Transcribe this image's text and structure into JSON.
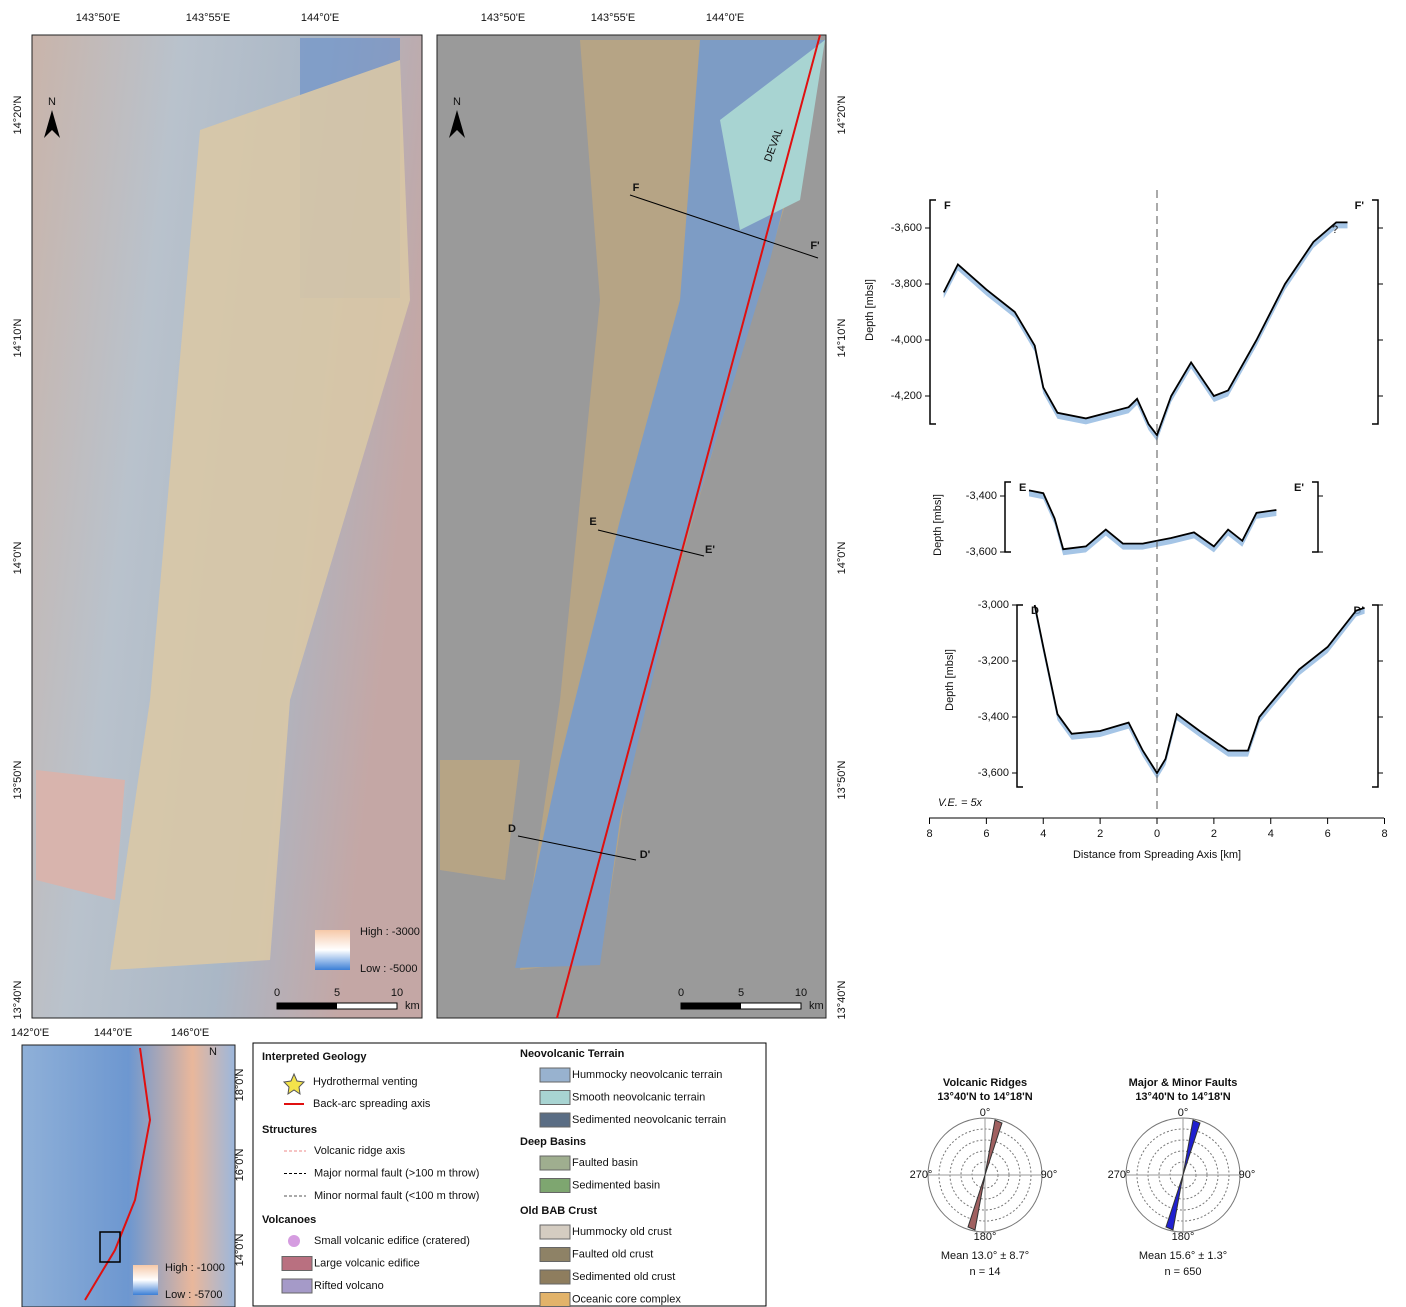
{
  "maps": [
    {
      "lon_labels": [
        "143°50'E",
        "143°55'E",
        "144°0'E"
      ],
      "lat_labels": [
        "14°20'N",
        "14°10'N",
        "14°0'N",
        "13°50'N",
        "13°40'N"
      ],
      "north": "N",
      "scale": [
        "0",
        "5",
        "10",
        "km"
      ],
      "colorbar": [
        "High : -3000",
        "Low : -5000"
      ]
    },
    {
      "lon_labels": [
        "143°50'E",
        "143°55'E",
        "144°0'E"
      ],
      "lat_labels": [
        "14°20'N",
        "14°10'N",
        "14°0'N",
        "13°50'N",
        "13°40'N"
      ],
      "north": "N",
      "scale": [
        "0",
        "5",
        "10",
        "km"
      ],
      "lines": [
        "F",
        "F'",
        "E",
        "E'",
        "D",
        "D'"
      ],
      "axis_label": "DEVAL"
    }
  ],
  "inset": {
    "lon_labels": [
      "142°0'E",
      "144°0'E",
      "146°0'E"
    ],
    "lat_labels": [
      "18°0'N",
      "16°0'N",
      "14°0'N"
    ],
    "north": "N",
    "colorbar": [
      "High : -1000",
      "Low : -5700"
    ]
  },
  "legend": {
    "title": "Interpreted Geology",
    "items": [
      "Hydrothermal venting",
      "Back-arc spreading axis"
    ],
    "sections": [
      {
        "heading": "Structures",
        "items": [
          "Volcanic ridge axis",
          "Major normal fault (>100 m throw)",
          "Minor normal fault (<100 m throw)"
        ]
      },
      {
        "heading": "Volcanoes",
        "items": [
          "Small volcanic edifice (cratered)",
          "Large volcanic edifice",
          "Rifted volcano"
        ]
      },
      {
        "heading": "Neovolcanic Terrain",
        "items": [
          "Hummocky neovolcanic terrain",
          "Smooth neovolcanic terrain",
          "Sedimented neovolcanic terrain"
        ]
      },
      {
        "heading": "Deep Basins",
        "items": [
          "Faulted basin",
          "Sedimented basin"
        ]
      },
      {
        "heading": "Old BAB Crust",
        "items": [
          "Hummocky old crust",
          "Faulted old crust",
          "Sedimented old crust",
          "Oceanic core complex"
        ]
      }
    ]
  },
  "profiles": {
    "y_title": "Depth [mbsl]",
    "x_title": "Distance from Spreading Axis [km]",
    "note": "V.E. = 5x",
    "xlim": [
      -8,
      8
    ],
    "xticks": [
      {
        "value": -8,
        "label": "8"
      },
      {
        "value": -6,
        "label": "6"
      },
      {
        "value": -4,
        "label": "4"
      },
      {
        "value": -2,
        "label": "2"
      },
      0,
      2,
      4,
      6,
      8
    ],
    "panels": [
      {
        "start": "F",
        "end": "F'",
        "annotation": "?",
        "ylim": [
          -4300,
          -3500
        ],
        "yticks": [
          {
            "value": -3600,
            "label": "-3,600"
          },
          {
            "value": -3800,
            "label": "-3,800"
          },
          {
            "value": -4000,
            "label": "-4,000"
          },
          {
            "value": -4200,
            "label": "-4,200"
          }
        ],
        "distance": [
          -7.5,
          -7,
          -6,
          -5,
          -4.3,
          -4,
          -3.5,
          -2.5,
          -1,
          -0.7,
          -0.3,
          0,
          0.5,
          1.2,
          2,
          2.5,
          3.5,
          4.5,
          5.5,
          6.3,
          6.7
        ],
        "depth": [
          -3830,
          -3730,
          -3820,
          -3900,
          -4020,
          -4170,
          -4260,
          -4280,
          -4240,
          -4210,
          -4300,
          -4340,
          -4200,
          -4080,
          -4200,
          -4180,
          -4000,
          -3800,
          -3650,
          -3580,
          -3580
        ]
      },
      {
        "start": "E",
        "end": "E'",
        "ylim": [
          -3600,
          -3350
        ],
        "yticks": [
          {
            "value": -3400,
            "label": "-3,400"
          },
          {
            "value": -3600,
            "label": "-3,600"
          }
        ],
        "distance": [
          -4.5,
          -4,
          -3.6,
          -3.3,
          -2.5,
          -1.8,
          -1.2,
          -0.5,
          0,
          0.5,
          1.3,
          2,
          2.5,
          3,
          3.5,
          4.2
        ],
        "depth": [
          -3380,
          -3390,
          -3480,
          -3590,
          -3580,
          -3520,
          -3570,
          -3570,
          -3560,
          -3550,
          -3530,
          -3580,
          -3520,
          -3560,
          -3460,
          -3450
        ]
      },
      {
        "start": "D",
        "end": "D'",
        "ylim": [
          -3650,
          -3000
        ],
        "yticks": [
          {
            "value": -3000,
            "label": "-3,000"
          },
          {
            "value": -3200,
            "label": "-3,200"
          },
          {
            "value": -3400,
            "label": "-3,400"
          },
          {
            "value": -3600,
            "label": "-3,600"
          }
        ],
        "distance": [
          -4.3,
          -4,
          -3.5,
          -3,
          -2,
          -1,
          -0.5,
          0,
          0.3,
          0.7,
          1.5,
          2.5,
          3.2,
          3.6,
          4,
          5,
          6,
          7,
          7.3
        ],
        "depth": [
          -3000,
          -3150,
          -3390,
          -3460,
          -3450,
          -3420,
          -3520,
          -3600,
          -3550,
          -3390,
          -3450,
          -3520,
          -3520,
          -3400,
          -3350,
          -3230,
          -3150,
          -3020,
          -3010
        ]
      }
    ]
  },
  "roses": [
    {
      "title": "Volcanic Ridges",
      "subtitle": "13°40'N to 14°18'N",
      "mean": "Mean 13.0° ± 8.7°",
      "n": "n = 14",
      "directions": [
        "0°",
        "90°",
        "180°",
        "270°"
      ]
    },
    {
      "title": "Major & Minor Faults",
      "subtitle": "13°40'N to 14°18'N",
      "mean": "Mean 15.6° ± 1.3°",
      "n": "n = 650",
      "directions": [
        "0°",
        "90°",
        "180°",
        "270°"
      ]
    }
  ]
}
